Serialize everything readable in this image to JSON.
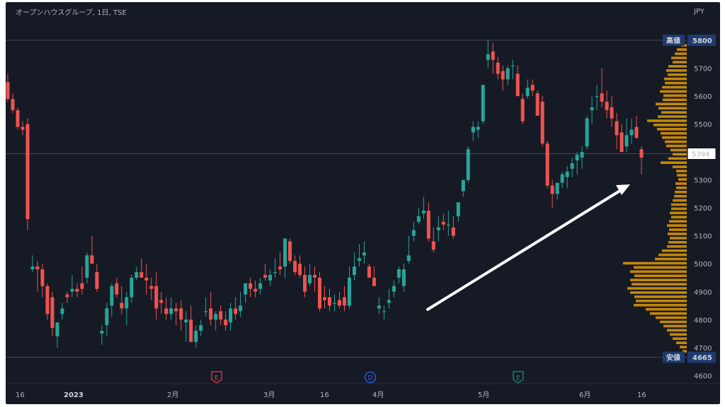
{
  "header": {
    "title": "オープンハウスグループ, 1日, TSE",
    "currency": "JPY"
  },
  "labels": {
    "high_tag": "高値",
    "high_value": "5800",
    "low_tag": "安値",
    "low_value": "4665",
    "last_price": "5394"
  },
  "events": [
    {
      "letter": "E",
      "color": "#f23645",
      "x_label_position": "earnings-feb"
    },
    {
      "letter": "D",
      "color": "#2962ff",
      "x_label_position": "dividend-mar"
    },
    {
      "letter": "E",
      "color": "#089981",
      "x_label_position": "earnings-may"
    }
  ],
  "colors": {
    "up": "#26a69a",
    "down": "#ef5350",
    "profile": "#f7a600",
    "bg": "#161a25",
    "line": "#434651",
    "arrow": "#ffffff"
  },
  "chart_data": {
    "type": "candlestick",
    "y_ticks": [
      4600,
      4700,
      4800,
      4900,
      5000,
      5100,
      5200,
      5300,
      5400,
      5500,
      5600,
      5700
    ],
    "ylim": [
      4560,
      5830
    ],
    "x_ticks": [
      "16",
      "2023",
      "2月",
      "3月",
      "16",
      "4月",
      "5月",
      "6月",
      "16"
    ],
    "high": 5800,
    "low": 4665,
    "last": 5394,
    "annotation": {
      "type": "arrow",
      "from": [
        4840,
        "early Apr"
      ],
      "to": [
        5330,
        "mid Jun"
      ]
    },
    "candles": [
      [
        5650,
        5680,
        5580,
        5590
      ],
      [
        5590,
        5610,
        5540,
        5550
      ],
      [
        5550,
        5560,
        5480,
        5490
      ],
      [
        5490,
        5510,
        5460,
        5480
      ],
      [
        5500,
        5520,
        5120,
        5160
      ],
      [
        4980,
        5030,
        4970,
        4990
      ],
      [
        4990,
        5010,
        4900,
        4980
      ],
      [
        4980,
        5000,
        4880,
        4920
      ],
      [
        4920,
        4930,
        4800,
        4820
      ],
      [
        4880,
        4900,
        4740,
        4770
      ],
      [
        4740,
        4790,
        4700,
        4790
      ],
      [
        4820,
        4860,
        4800,
        4840
      ],
      [
        4890,
        4900,
        4860,
        4880
      ],
      [
        4900,
        4960,
        4880,
        4910
      ],
      [
        4910,
        4930,
        4880,
        4900
      ],
      [
        4930,
        4990,
        4890,
        4910
      ],
      [
        4950,
        5040,
        4930,
        5030
      ],
      [
        5030,
        5100,
        5000,
        5000
      ],
      [
        4970,
        5000,
        4900,
        4910
      ],
      [
        4750,
        4780,
        4710,
        4760
      ],
      [
        4780,
        4860,
        4740,
        4840
      ],
      [
        4850,
        4930,
        4810,
        4920
      ],
      [
        4930,
        4950,
        4880,
        4890
      ],
      [
        4860,
        4920,
        4820,
        4840
      ],
      [
        4840,
        4900,
        4780,
        4880
      ],
      [
        4880,
        4960,
        4860,
        4950
      ],
      [
        4950,
        4990,
        4940,
        4970
      ],
      [
        4970,
        5020,
        4950,
        4950
      ],
      [
        4950,
        5000,
        4890,
        4940
      ],
      [
        4920,
        4950,
        4870,
        4910
      ],
      [
        4920,
        4970,
        4800,
        4840
      ],
      [
        4870,
        4900,
        4820,
        4860
      ],
      [
        4840,
        4880,
        4800,
        4820
      ],
      [
        4820,
        4880,
        4800,
        4840
      ],
      [
        4840,
        4860,
        4780,
        4830
      ],
      [
        4840,
        4870,
        4760,
        4800
      ],
      [
        4790,
        4830,
        4720,
        4800
      ],
      [
        4800,
        4850,
        4720,
        4720
      ],
      [
        4720,
        4780,
        4700,
        4760
      ],
      [
        4760,
        4800,
        4740,
        4780
      ],
      [
        4830,
        4880,
        4810,
        4830
      ],
      [
        4840,
        4900,
        4780,
        4800
      ],
      [
        4800,
        4830,
        4760,
        4820
      ],
      [
        4830,
        4850,
        4780,
        4800
      ],
      [
        4800,
        4830,
        4760,
        4780
      ],
      [
        4790,
        4860,
        4760,
        4840
      ],
      [
        4840,
        4880,
        4800,
        4820
      ],
      [
        4830,
        4900,
        4810,
        4850
      ],
      [
        4890,
        4920,
        4860,
        4930
      ],
      [
        4930,
        4950,
        4880,
        4910
      ],
      [
        4910,
        4940,
        4880,
        4900
      ],
      [
        4910,
        4950,
        4890,
        4930
      ],
      [
        4960,
        5000,
        4940,
        4950
      ],
      [
        4940,
        4980,
        4920,
        4960
      ],
      [
        4970,
        5020,
        4950,
        4970
      ],
      [
        4990,
        5040,
        4960,
        4980
      ],
      [
        4990,
        5090,
        4950,
        5090
      ],
      [
        5080,
        5090,
        5000,
        5010
      ],
      [
        5010,
        5030,
        4960,
        4970
      ],
      [
        5000,
        5030,
        4950,
        4960
      ],
      [
        4960,
        4990,
        4880,
        4900
      ],
      [
        4930,
        5000,
        4920,
        4960
      ],
      [
        4960,
        4990,
        4900,
        4950
      ],
      [
        4950,
        4970,
        4830,
        4840
      ],
      [
        4880,
        4920,
        4840,
        4870
      ],
      [
        4880,
        4910,
        4830,
        4850
      ],
      [
        4860,
        4890,
        4830,
        4860
      ],
      [
        4870,
        4900,
        4840,
        4850
      ],
      [
        4880,
        4920,
        4830,
        4850
      ],
      [
        4850,
        4990,
        4840,
        4950
      ],
      [
        4960,
        5040,
        4940,
        4990
      ],
      [
        5010,
        5070,
        4990,
        5020
      ],
      [
        5030,
        5080,
        5000,
        5040
      ],
      [
        4990,
        5000,
        4960,
        4950
      ],
      [
        4950,
        4990,
        4920,
        4920
      ],
      [
        4840,
        4880,
        4820,
        4850
      ],
      [
        4830,
        4850,
        4800,
        4830
      ],
      [
        4860,
        4910,
        4840,
        4870
      ],
      [
        4900,
        4940,
        4880,
        4920
      ],
      [
        4950,
        4990,
        4930,
        4980
      ],
      [
        4920,
        5000,
        4900,
        4980
      ],
      [
        5010,
        5100,
        5000,
        5030
      ],
      [
        5100,
        5150,
        5080,
        5120
      ],
      [
        5150,
        5200,
        5140,
        5170
      ],
      [
        5180,
        5240,
        5160,
        5190
      ],
      [
        5190,
        5220,
        5080,
        5090
      ],
      [
        5080,
        5130,
        5040,
        5050
      ],
      [
        5120,
        5170,
        5080,
        5130
      ],
      [
        5150,
        5180,
        5120,
        5140
      ],
      [
        5140,
        5190,
        5100,
        5140
      ],
      [
        5130,
        5170,
        5090,
        5100
      ],
      [
        5170,
        5220,
        5150,
        5220
      ],
      [
        5260,
        5300,
        5240,
        5300
      ],
      [
        5300,
        5420,
        5290,
        5410
      ],
      [
        5470,
        5510,
        5440,
        5490
      ],
      [
        5480,
        5510,
        5450,
        5490
      ],
      [
        5510,
        5640,
        5500,
        5640
      ],
      [
        5730,
        5800,
        5700,
        5750
      ],
      [
        5760,
        5790,
        5680,
        5730
      ],
      [
        5720,
        5740,
        5660,
        5680
      ],
      [
        5690,
        5710,
        5620,
        5660
      ],
      [
        5660,
        5710,
        5640,
        5700
      ],
      [
        5710,
        5730,
        5660,
        5710
      ],
      [
        5680,
        5710,
        5600,
        5600
      ],
      [
        5590,
        5610,
        5500,
        5510
      ],
      [
        5600,
        5660,
        5590,
        5630
      ],
      [
        5640,
        5660,
        5600,
        5620
      ],
      [
        5610,
        5620,
        5530,
        5530
      ],
      [
        5580,
        5600,
        5420,
        5430
      ],
      [
        5430,
        5440,
        5270,
        5280
      ],
      [
        5280,
        5300,
        5200,
        5250
      ],
      [
        5250,
        5290,
        5230,
        5290
      ],
      [
        5290,
        5330,
        5270,
        5320
      ],
      [
        5310,
        5350,
        5270,
        5330
      ],
      [
        5340,
        5380,
        5310,
        5360
      ],
      [
        5370,
        5400,
        5320,
        5390
      ],
      [
        5380,
        5420,
        5340,
        5400
      ],
      [
        5420,
        5530,
        5410,
        5520
      ],
      [
        5550,
        5600,
        5500,
        5560
      ],
      [
        5600,
        5640,
        5550,
        5600
      ],
      [
        5610,
        5700,
        5560,
        5580
      ],
      [
        5580,
        5620,
        5520,
        5550
      ],
      [
        5560,
        5600,
        5490,
        5520
      ],
      [
        5510,
        5540,
        5410,
        5460
      ],
      [
        5470,
        5500,
        5400,
        5400
      ],
      [
        5420,
        5520,
        5400,
        5460
      ],
      [
        5460,
        5520,
        5430,
        5480
      ],
      [
        5490,
        5530,
        5450,
        5450
      ],
      [
        5410,
        5420,
        5320,
        5380
      ]
    ],
    "volume_profile": [
      [
        5780,
        8
      ],
      [
        5765,
        14
      ],
      [
        5750,
        17
      ],
      [
        5735,
        22
      ],
      [
        5720,
        20
      ],
      [
        5705,
        26
      ],
      [
        5690,
        29
      ],
      [
        5675,
        27
      ],
      [
        5660,
        32
      ],
      [
        5645,
        31
      ],
      [
        5630,
        35
      ],
      [
        5615,
        38
      ],
      [
        5600,
        33
      ],
      [
        5585,
        34
      ],
      [
        5570,
        44
      ],
      [
        5555,
        40
      ],
      [
        5540,
        36
      ],
      [
        5525,
        41
      ],
      [
        5510,
        56
      ],
      [
        5495,
        47
      ],
      [
        5480,
        42
      ],
      [
        5465,
        37
      ],
      [
        5450,
        35
      ],
      [
        5435,
        31
      ],
      [
        5420,
        29
      ],
      [
        5405,
        23
      ],
      [
        5390,
        20
      ],
      [
        5375,
        26
      ],
      [
        5360,
        37
      ],
      [
        5345,
        20
      ],
      [
        5330,
        15
      ],
      [
        5315,
        14
      ],
      [
        5300,
        12
      ],
      [
        5285,
        16
      ],
      [
        5270,
        15
      ],
      [
        5255,
        17
      ],
      [
        5240,
        18
      ],
      [
        5225,
        20
      ],
      [
        5210,
        22
      ],
      [
        5195,
        22
      ],
      [
        5180,
        24
      ],
      [
        5165,
        22
      ],
      [
        5150,
        25
      ],
      [
        5135,
        28
      ],
      [
        5120,
        25
      ],
      [
        5105,
        27
      ],
      [
        5090,
        24
      ],
      [
        5075,
        26
      ],
      [
        5060,
        28
      ],
      [
        5045,
        35
      ],
      [
        5030,
        40
      ],
      [
        5015,
        45
      ],
      [
        5000,
        90
      ],
      [
        4985,
        75
      ],
      [
        4970,
        80
      ],
      [
        4955,
        74
      ],
      [
        4940,
        80
      ],
      [
        4925,
        78
      ],
      [
        4910,
        84
      ],
      [
        4895,
        80
      ],
      [
        4880,
        74
      ],
      [
        4865,
        72
      ],
      [
        4850,
        75
      ],
      [
        4835,
        58
      ],
      [
        4820,
        52
      ],
      [
        4805,
        44
      ],
      [
        4790,
        38
      ],
      [
        4775,
        33
      ],
      [
        4760,
        28
      ],
      [
        4745,
        24
      ],
      [
        4730,
        20
      ],
      [
        4715,
        15
      ],
      [
        4700,
        10
      ],
      [
        4685,
        6
      ]
    ]
  }
}
